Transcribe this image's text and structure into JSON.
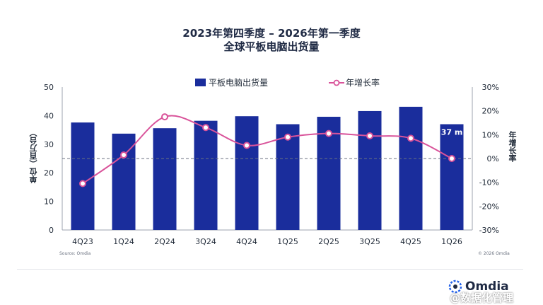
{
  "title_line1": "2023年第四季度 – 2026年第一季度",
  "title_line2": "全球平板电脑出货量",
  "legend": {
    "bar_label": "平板电脑出货量",
    "line_label": "年增长率"
  },
  "ylabel_left": "单位（百万台）",
  "ylabel_right": "年增长率",
  "source_left": "Source: Omdia",
  "source_right": "© 2026 Omdia",
  "logo_text": "Omdia",
  "watermark": "@数据化管理",
  "colors": {
    "bar": "#1a2d9c",
    "line": "#d9539a",
    "marker_fill": "#ffffff"
  },
  "chart_data": {
    "type": "bar",
    "categories": [
      "4Q23",
      "1Q24",
      "2Q24",
      "3Q24",
      "4Q24",
      "1Q25",
      "2Q25",
      "3Q25",
      "4Q25",
      "1Q26"
    ],
    "series": [
      {
        "type": "bar",
        "values": [
          37.6,
          33.7,
          35.6,
          38.2,
          39.8,
          37.0,
          39.6,
          41.6,
          43.1,
          37.0
        ]
      },
      {
        "type": "line",
        "axis": "right",
        "values": [
          -10.5,
          1.5,
          17.5,
          13.0,
          5.5,
          9.0,
          10.5,
          9.5,
          8.5,
          0.0
        ]
      }
    ],
    "bar_labels": [
      {
        "index": 9,
        "text": "37 m"
      }
    ],
    "ylim_left": [
      0,
      50
    ],
    "yticks_left": [
      "0",
      "10",
      "20",
      "30",
      "40",
      "50"
    ],
    "ylim_right": [
      -30,
      30
    ],
    "yticks_right": [
      "-30%",
      "-20%",
      "-10%",
      "0%",
      "10%",
      "20%",
      "30%"
    ],
    "reference_line": {
      "axis": "right",
      "value": 0,
      "style": "dashed"
    },
    "grid": false
  }
}
